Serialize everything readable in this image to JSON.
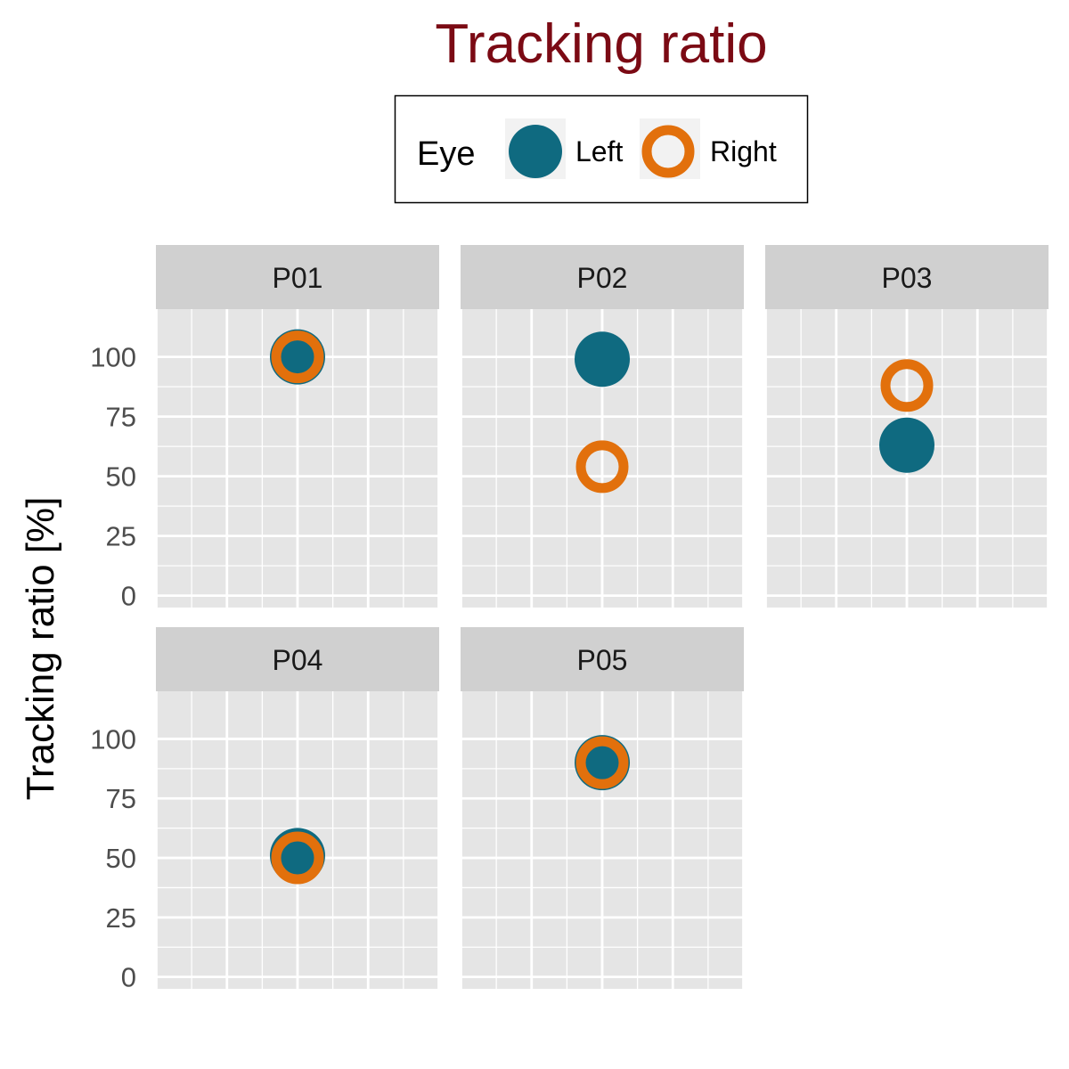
{
  "chart_data": {
    "type": "scatter",
    "title": "Tracking ratio",
    "ylabel": "Tracking ratio [%]",
    "xlabel": "",
    "ylim": [
      -5,
      120
    ],
    "yticks": [
      0,
      25,
      50,
      75,
      100
    ],
    "grid": true,
    "legend": {
      "title": "Eye",
      "position": "top",
      "entries": [
        {
          "name": "Left",
          "style": "filled",
          "color": "#0f6a80"
        },
        {
          "name": "Right",
          "style": "hollow",
          "color": "#e2700c"
        }
      ]
    },
    "colors": {
      "title": "#7b0a14",
      "left": "#0f6a80",
      "right": "#e2700c",
      "panel_bg": "#e5e5e5",
      "strip_bg": "#d0d0d0"
    },
    "panels": [
      {
        "label": "P01",
        "left": 100,
        "right": 100
      },
      {
        "label": "P02",
        "left": 99,
        "right": 54
      },
      {
        "label": "P03",
        "left": 63,
        "right": 88
      },
      {
        "label": "P04",
        "left": 51,
        "right": 50
      },
      {
        "label": "P05",
        "left": 90,
        "right": 90
      }
    ]
  }
}
